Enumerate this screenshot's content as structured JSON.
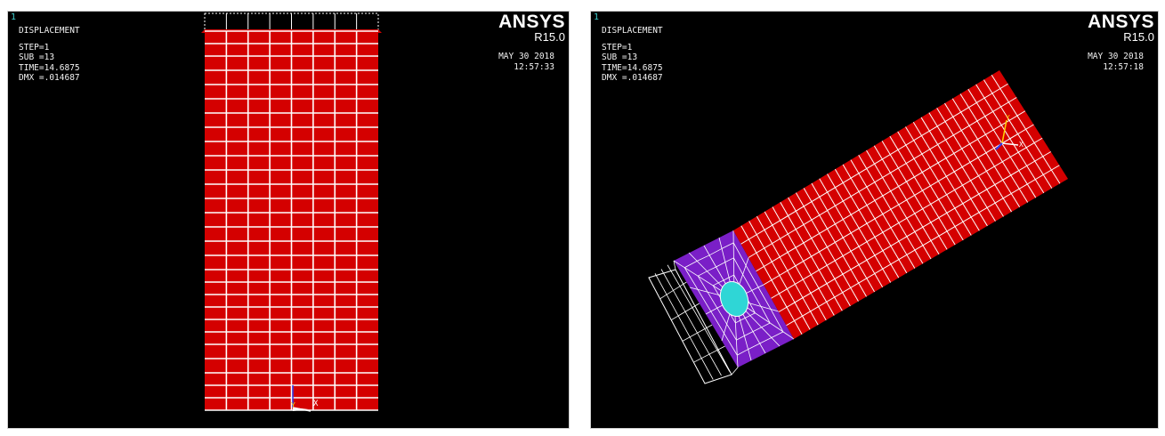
{
  "viewports": [
    {
      "window_number": "1",
      "legend": {
        "title": "DISPLACEMENT",
        "step": "STEP=1",
        "sub": "SUB =13",
        "time": "TIME=14.6875",
        "dmx": "DMX =.014687"
      },
      "brand": "ANSYS",
      "release": "R15.0",
      "date": "MAY 30 2018",
      "time": "12:57:33",
      "triad": {
        "x": "X",
        "y": "Y"
      }
    },
    {
      "window_number": "1",
      "legend": {
        "title": "DISPLACEMENT",
        "step": "STEP=1",
        "sub": "SUB =13",
        "time": "TIME=14.6875",
        "dmx": "DMX =.014687"
      },
      "brand": "ANSYS",
      "release": "R15.0",
      "date": "MAY 30 2018",
      "time": "12:57:18",
      "triad": {
        "x": "X",
        "y": "Y"
      }
    }
  ],
  "colors": {
    "background": "#000000",
    "mesh_deformed": "#d40000",
    "mesh_lines": "#ffffff",
    "hole_region": "#7a1fc7",
    "hole": "#2fd6d6",
    "label_text": "#f2f2f2",
    "window_number": "#3ecfcf"
  }
}
